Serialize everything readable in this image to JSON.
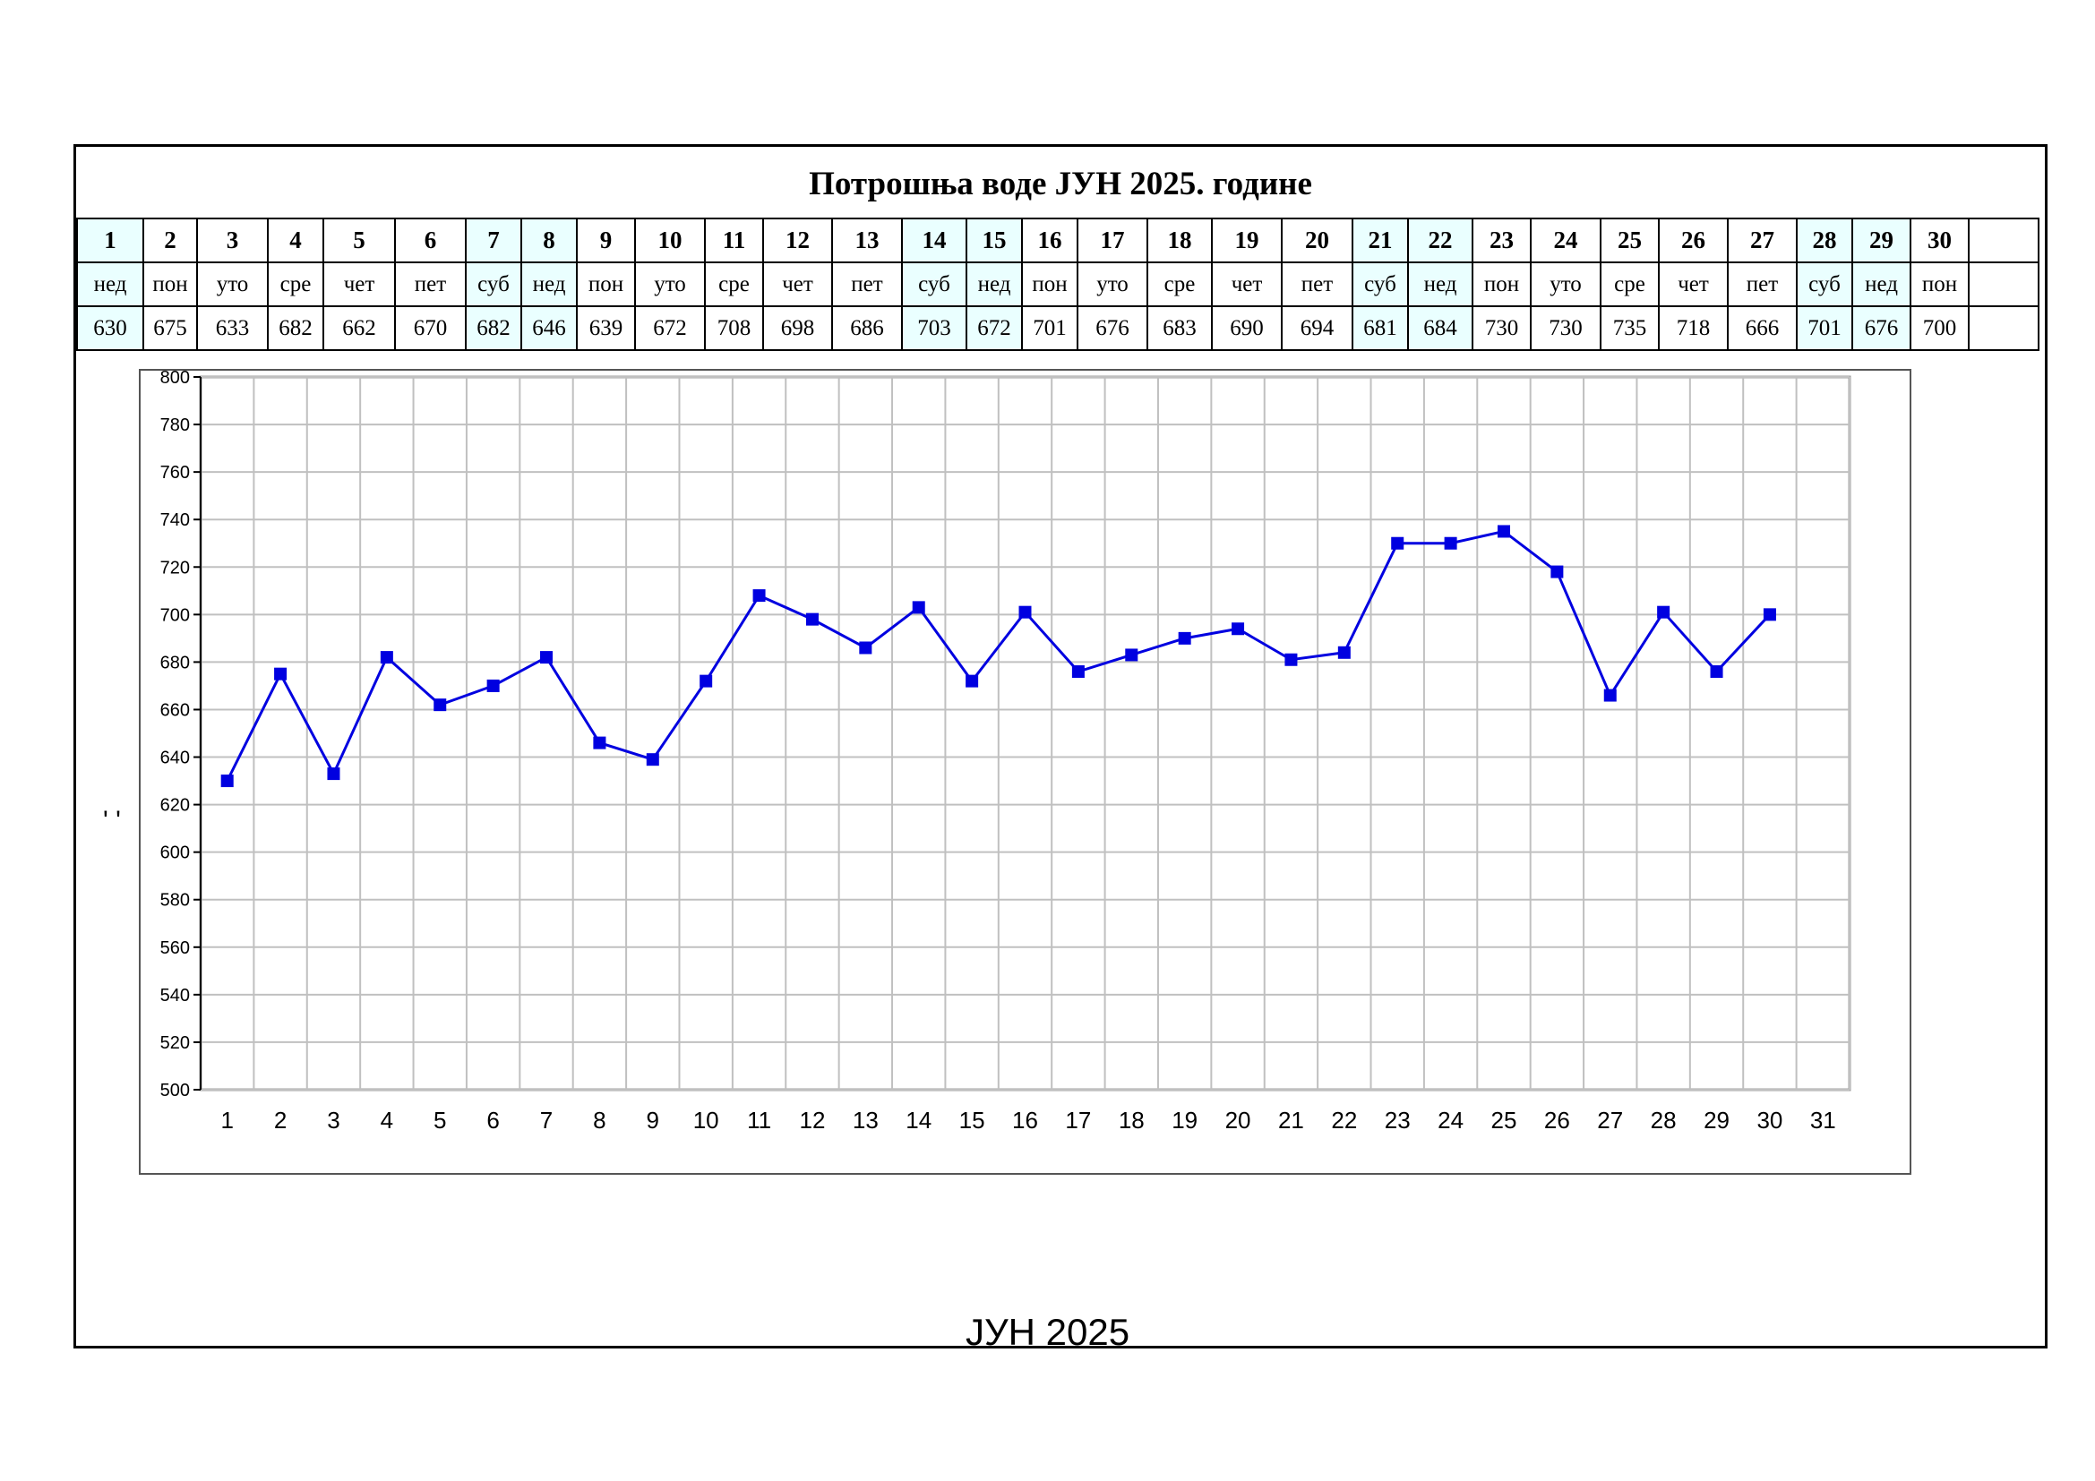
{
  "title": "Потрошња воде ЈУН 2025. године",
  "caption": "ЈУН 2025",
  "side_marks": "' '",
  "days": [
    {
      "n": "1",
      "d": "нед",
      "v": "630",
      "we": true
    },
    {
      "n": "2",
      "d": "пон",
      "v": "675",
      "we": false
    },
    {
      "n": "3",
      "d": "уто",
      "v": "633",
      "we": false
    },
    {
      "n": "4",
      "d": "сре",
      "v": "682",
      "we": false
    },
    {
      "n": "5",
      "d": "чет",
      "v": "662",
      "we": false
    },
    {
      "n": "6",
      "d": "пет",
      "v": "670",
      "we": false
    },
    {
      "n": "7",
      "d": "суб",
      "v": "682",
      "we": true
    },
    {
      "n": "8",
      "d": "нед",
      "v": "646",
      "we": true
    },
    {
      "n": "9",
      "d": "пон",
      "v": "639",
      "we": false
    },
    {
      "n": "10",
      "d": "уто",
      "v": "672",
      "we": false
    },
    {
      "n": "11",
      "d": "сре",
      "v": "708",
      "we": false
    },
    {
      "n": "12",
      "d": "чет",
      "v": "698",
      "we": false
    },
    {
      "n": "13",
      "d": "пет",
      "v": "686",
      "we": false
    },
    {
      "n": "14",
      "d": "суб",
      "v": "703",
      "we": true
    },
    {
      "n": "15",
      "d": "нед",
      "v": "672",
      "we": true
    },
    {
      "n": "16",
      "d": "пон",
      "v": "701",
      "we": false
    },
    {
      "n": "17",
      "d": "уто",
      "v": "676",
      "we": false
    },
    {
      "n": "18",
      "d": "сре",
      "v": "683",
      "we": false
    },
    {
      "n": "19",
      "d": "чет",
      "v": "690",
      "we": false
    },
    {
      "n": "20",
      "d": "пет",
      "v": "694",
      "we": false
    },
    {
      "n": "21",
      "d": "суб",
      "v": "681",
      "we": true
    },
    {
      "n": "22",
      "d": "нед",
      "v": "684",
      "we": true
    },
    {
      "n": "23",
      "d": "пон",
      "v": "730",
      "we": false
    },
    {
      "n": "24",
      "d": "уто",
      "v": "730",
      "we": false
    },
    {
      "n": "25",
      "d": "сре",
      "v": "735",
      "we": false
    },
    {
      "n": "26",
      "d": "чет",
      "v": "718",
      "we": false
    },
    {
      "n": "27",
      "d": "пет",
      "v": "666",
      "we": false
    },
    {
      "n": "28",
      "d": "суб",
      "v": "701",
      "we": true
    },
    {
      "n": "29",
      "d": "нед",
      "v": "676",
      "we": true
    },
    {
      "n": "30",
      "d": "пон",
      "v": "700",
      "we": false
    }
  ],
  "colors": {
    "series": "#0000e0",
    "grid": "#c0c0c0",
    "weekend": "#eaffff"
  },
  "chart_data": {
    "type": "line",
    "x": [
      1,
      2,
      3,
      4,
      5,
      6,
      7,
      8,
      9,
      10,
      11,
      12,
      13,
      14,
      15,
      16,
      17,
      18,
      19,
      20,
      21,
      22,
      23,
      24,
      25,
      26,
      27,
      28,
      29,
      30
    ],
    "y": [
      630,
      675,
      633,
      682,
      662,
      670,
      682,
      646,
      639,
      672,
      708,
      698,
      686,
      703,
      672,
      701,
      676,
      683,
      690,
      694,
      681,
      684,
      730,
      730,
      735,
      718,
      666,
      701,
      676,
      700
    ],
    "xticks": [
      1,
      2,
      3,
      4,
      5,
      6,
      7,
      8,
      9,
      10,
      11,
      12,
      13,
      14,
      15,
      16,
      17,
      18,
      19,
      20,
      21,
      22,
      23,
      24,
      25,
      26,
      27,
      28,
      29,
      30,
      31
    ],
    "yticks": [
      500,
      520,
      540,
      560,
      580,
      600,
      620,
      640,
      660,
      680,
      700,
      720,
      740,
      760,
      780,
      800
    ],
    "xlim": [
      0.5,
      31.5
    ],
    "ylim": [
      500,
      800
    ],
    "marker": "square",
    "grid": true,
    "legend": "none",
    "title": "",
    "xlabel": "",
    "ylabel": ""
  }
}
